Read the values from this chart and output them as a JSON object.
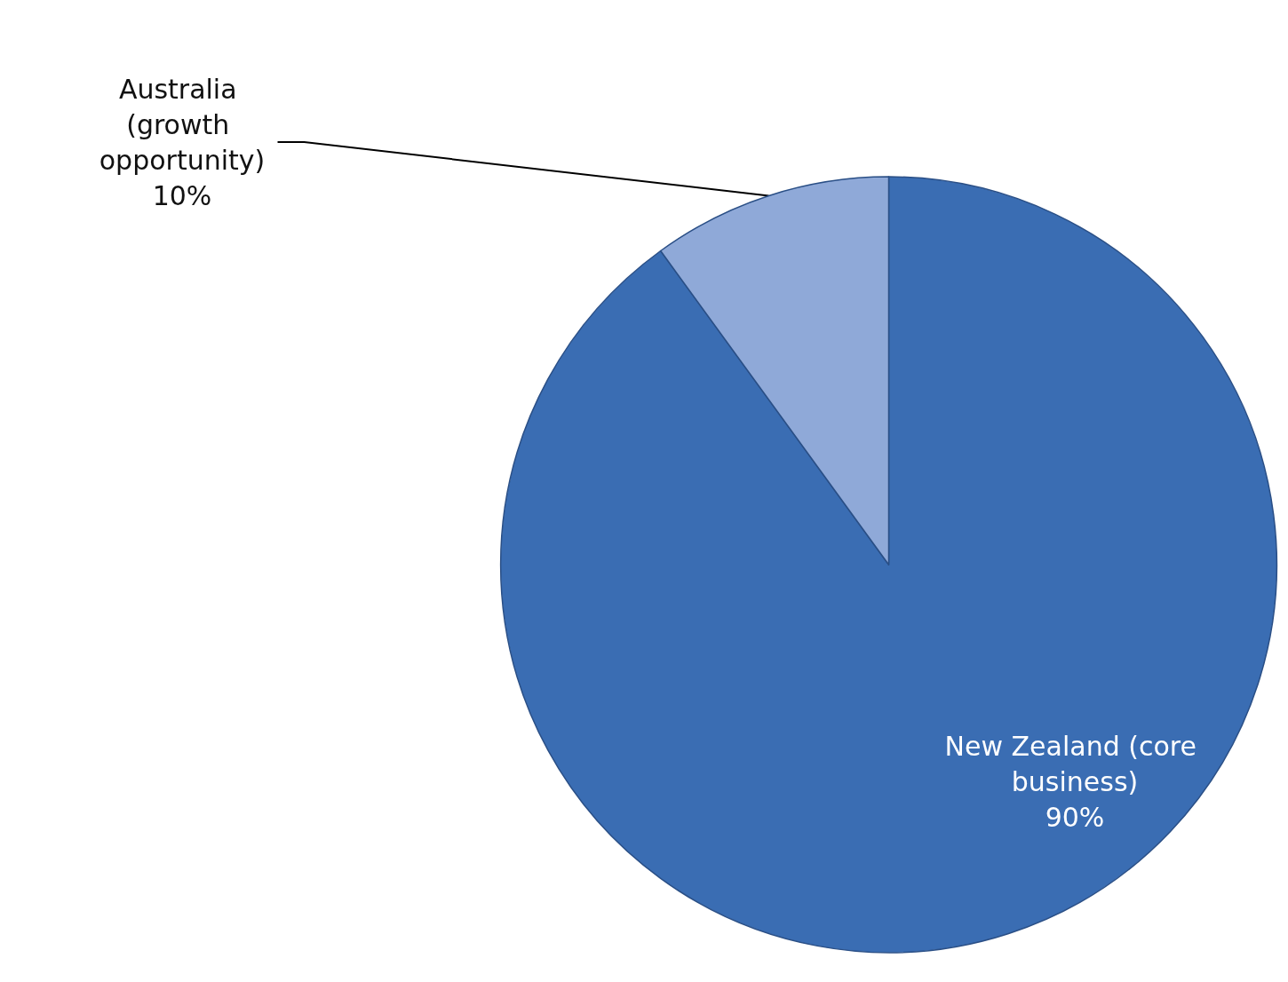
{
  "chart_data": {
    "type": "pie",
    "categories": [
      "New Zealand (core business)",
      "Australia (growth opportunity)"
    ],
    "values": [
      90,
      10
    ],
    "value_labels": [
      "90%",
      "10%"
    ],
    "colors": [
      "#3a6db3",
      "#8fa9d8"
    ]
  }
}
